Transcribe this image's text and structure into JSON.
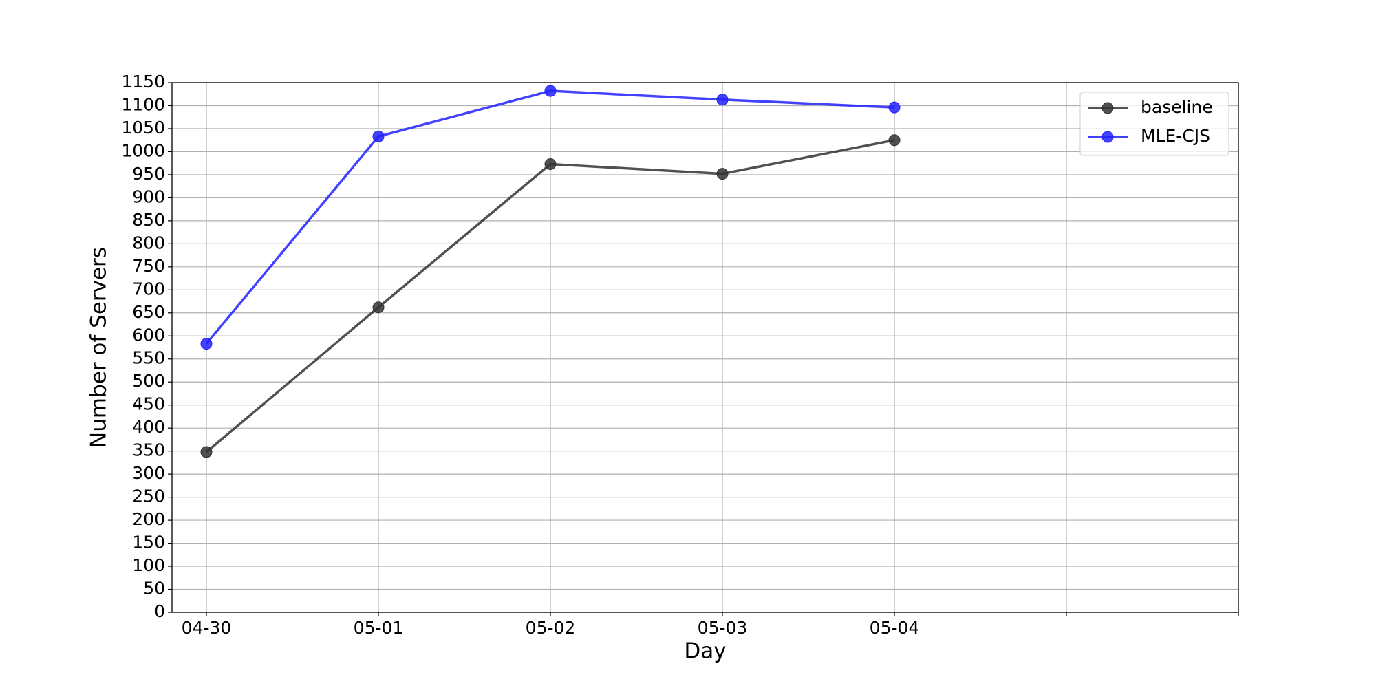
{
  "chart_data": {
    "type": "line",
    "x_label": "Day",
    "y_label": "Number of Servers",
    "categories": [
      "04-30",
      "05-01",
      "05-02",
      "05-03",
      "05-04",
      null,
      null
    ],
    "series": [
      {
        "name": "baseline",
        "color": "#333333",
        "values": [
          348,
          662,
          973,
          952,
          1025,
          null,
          null
        ]
      },
      {
        "name": "MLE-CJS",
        "color": "#2222ff",
        "values": [
          583,
          1033,
          1132,
          1113,
          1096,
          null,
          null
        ]
      }
    ],
    "ylim": [
      0,
      1150
    ],
    "yticks": [
      0,
      50,
      100,
      150,
      200,
      250,
      300,
      350,
      400,
      450,
      500,
      550,
      600,
      650,
      700,
      750,
      800,
      850,
      900,
      950,
      1000,
      1050,
      1100,
      1150
    ],
    "grid": true,
    "legend": "upper right"
  }
}
